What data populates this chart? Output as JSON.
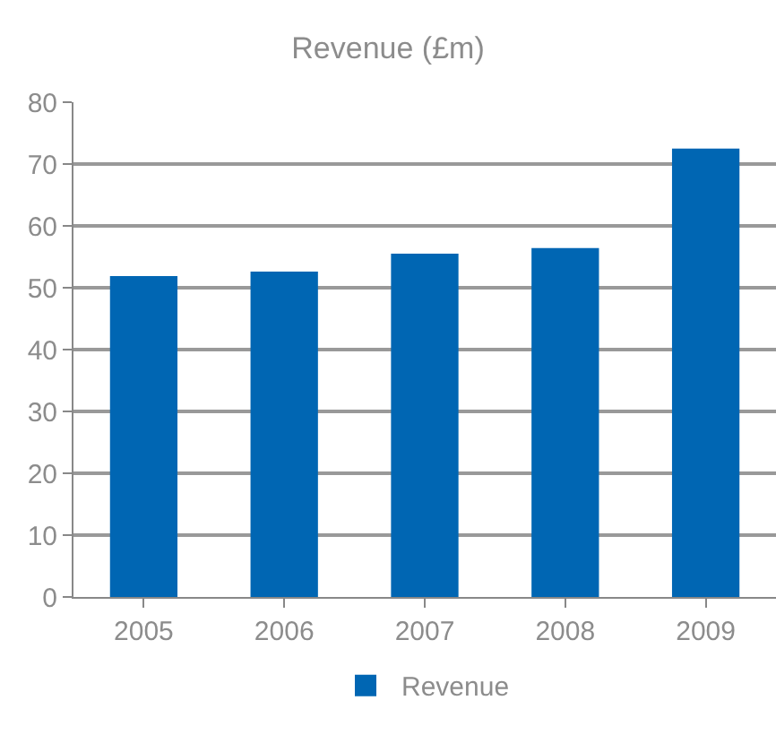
{
  "chart_data": {
    "type": "bar",
    "title": "Revenue (£m)",
    "categories": [
      "2005",
      "2006",
      "2007",
      "2008",
      "2009"
    ],
    "series": [
      {
        "name": "Revenue",
        "color": "#0066b3",
        "values": [
          51.9,
          52.6,
          55.5,
          56.4,
          72.5
        ]
      }
    ],
    "ylim": [
      0,
      80
    ],
    "yticks": [
      0,
      10,
      20,
      30,
      40,
      50,
      60,
      70,
      80
    ],
    "grid": "y",
    "legend": "bottom"
  }
}
